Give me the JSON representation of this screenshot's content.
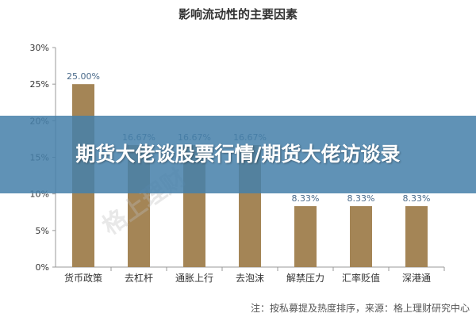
{
  "chart_data": {
    "type": "bar",
    "title": "影响流动性的主要因素",
    "categories": [
      "货币政策",
      "去杠杆",
      "通胀上行",
      "去泡沫",
      "解禁压力",
      "汇率贬值",
      "深港通"
    ],
    "values": [
      25.0,
      16.67,
      16.67,
      16.67,
      8.33,
      8.33,
      8.33
    ],
    "data_labels": [
      "25.00%",
      "16.67%",
      "16.67%",
      "16.67%",
      "8.33%",
      "8.33%",
      "8.33%"
    ],
    "yticks": [
      "0%",
      "5%",
      "10%",
      "15%",
      "20%",
      "25%",
      "30%"
    ],
    "ylim": [
      0,
      30
    ],
    "bar_color": "#a48556",
    "grid": false,
    "legend": "none"
  },
  "footer_note": "注：按私募提及热度排序，来源：格上理财研究中心",
  "overlay_banner": "期货大佬谈股票行情/期货大佬访谈录",
  "watermark": "格上理财"
}
